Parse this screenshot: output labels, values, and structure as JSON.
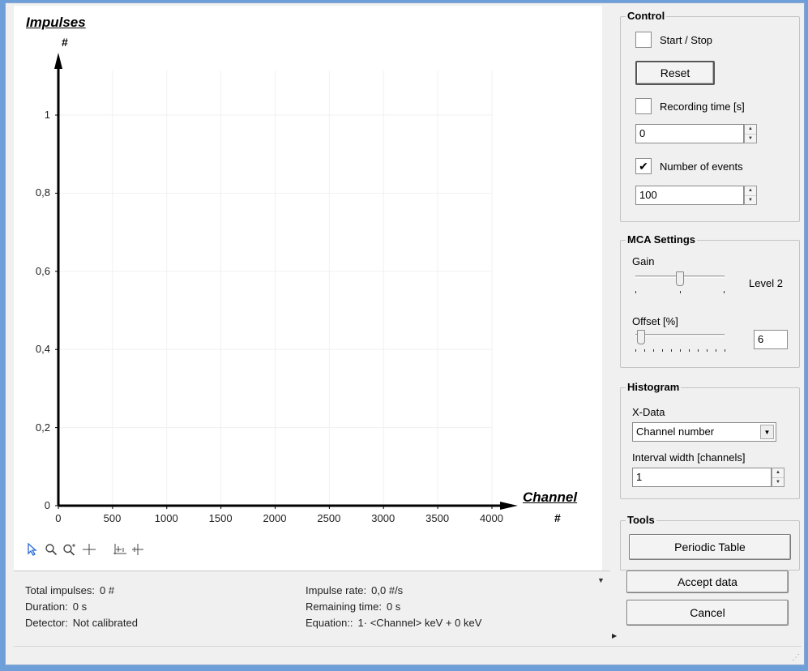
{
  "chart": {
    "title": "Impulses",
    "y_unit": "#",
    "xlabel": "Channel",
    "x_unit": "#",
    "x_ticks": [
      "0",
      "500",
      "1000",
      "1500",
      "2000",
      "2500",
      "3000",
      "3500",
      "4000"
    ],
    "y_ticks": [
      "0",
      "0,2",
      "0,4",
      "0,6",
      "0,8",
      "1"
    ]
  },
  "chart_data": {
    "type": "bar",
    "title": "Impulses",
    "xlabel": "Channel",
    "ylabel": "Impulses",
    "xlim": [
      0,
      4000
    ],
    "ylim": [
      0,
      1
    ],
    "x_ticks": [
      0,
      500,
      1000,
      1500,
      2000,
      2500,
      3000,
      3500,
      4000
    ],
    "y_ticks": [
      0,
      0.2,
      0.4,
      0.6,
      0.8,
      1
    ],
    "series": [],
    "grid": true
  },
  "toolbar": {
    "icons": [
      "pointer-icon",
      "zoom-icon",
      "zoom-plus-icon",
      "crosshair-icon",
      "axis-scale-icon",
      "marker-icon"
    ]
  },
  "status": {
    "total_impulses_label": "Total impulses:",
    "total_impulses_value": "0 #",
    "duration_label": "Duration:",
    "duration_value": "0 s",
    "detector_label": "Detector:",
    "detector_value": "Not calibrated",
    "impulse_rate_label": "Impulse rate:",
    "impulse_rate_value": "0,0  #/s",
    "remaining_time_label": "Remaining time:",
    "remaining_time_value": "0  s",
    "equation_label": "Equation::",
    "equation_value": "1· <Channel> keV + 0 keV"
  },
  "control": {
    "title": "Control",
    "start_stop_label": "Start / Stop",
    "start_stop_checked": false,
    "reset_label": "Reset",
    "recording_time_label": "Recording time [s]",
    "recording_time_checked": false,
    "recording_time_value": "0",
    "number_of_events_label": "Number of events",
    "number_of_events_checked": true,
    "number_of_events_value": "100"
  },
  "mca": {
    "title": "MCA Settings",
    "gain_label": "Gain",
    "gain_level_text": "Level 2",
    "gain_position_fraction": 0.5,
    "offset_label": "Offset [%]",
    "offset_value": "6",
    "offset_percent": 6
  },
  "histogram": {
    "title": "Histogram",
    "x_data_label": "X-Data",
    "x_data_selected": "Channel number",
    "interval_label": "Interval width [channels]",
    "interval_value": "1"
  },
  "tools": {
    "title": "Tools",
    "periodic_table_label": "Periodic Table"
  },
  "actions": {
    "accept_label": "Accept data",
    "cancel_label": "Cancel"
  },
  "glyphs": {
    "check": "✔",
    "spin_up": "▲",
    "spin_down": "▼",
    "dropdown": "▼",
    "status_arrow": "▼",
    "side_arrow": "▶",
    "grip": "⋰"
  }
}
